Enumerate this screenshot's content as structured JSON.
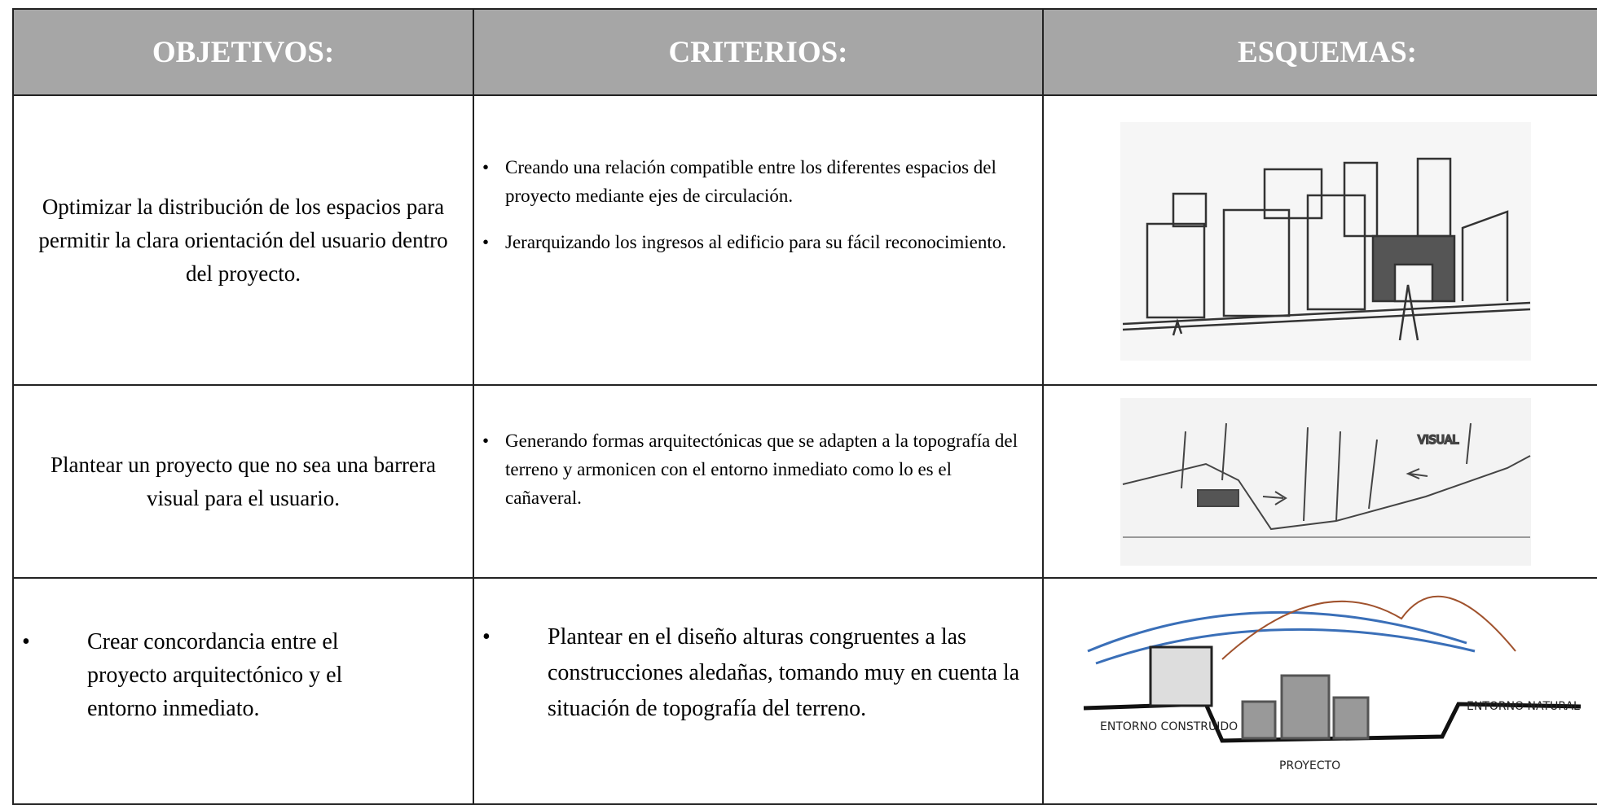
{
  "header": {
    "columns": [
      "OBJETIVOS:",
      "CRITERIOS:",
      "ESQUEMAS:"
    ]
  },
  "table": {
    "rows": [
      {
        "objective": "Optimizar la distribución de los espacios para permitir la clara orientación del usuario dentro del proyecto.",
        "criteria": [
          "Creando una relación compatible entre los diferentes espacios del proyecto mediante ejes de circulación.",
          "Jerarquizando los ingresos al edificio para su fácil reconocimiento."
        ],
        "sketch_labels": []
      },
      {
        "objective": "Plantear un proyecto que no sea una barrera visual para el usuario.",
        "criteria": [
          "Generando  formas arquitectónicas que se adapten a la topografía del terreno y armonicen con el entorno inmediato como lo es el cañaveral."
        ],
        "sketch_labels": [
          "VISUAL"
        ]
      },
      {
        "objective": "Crear concordancia  entre el proyecto arquitectónico y el entorno inmediato.",
        "criteria": [
          "Plantear en el diseño alturas congruentes a las construcciones aledañas, tomando muy en cuenta la situación de topografía del terreno."
        ],
        "sketch_labels": [
          "ENTORNO CONSTRUIDO",
          "PROYECTO",
          "ENTORNO NATURAL"
        ]
      }
    ]
  }
}
